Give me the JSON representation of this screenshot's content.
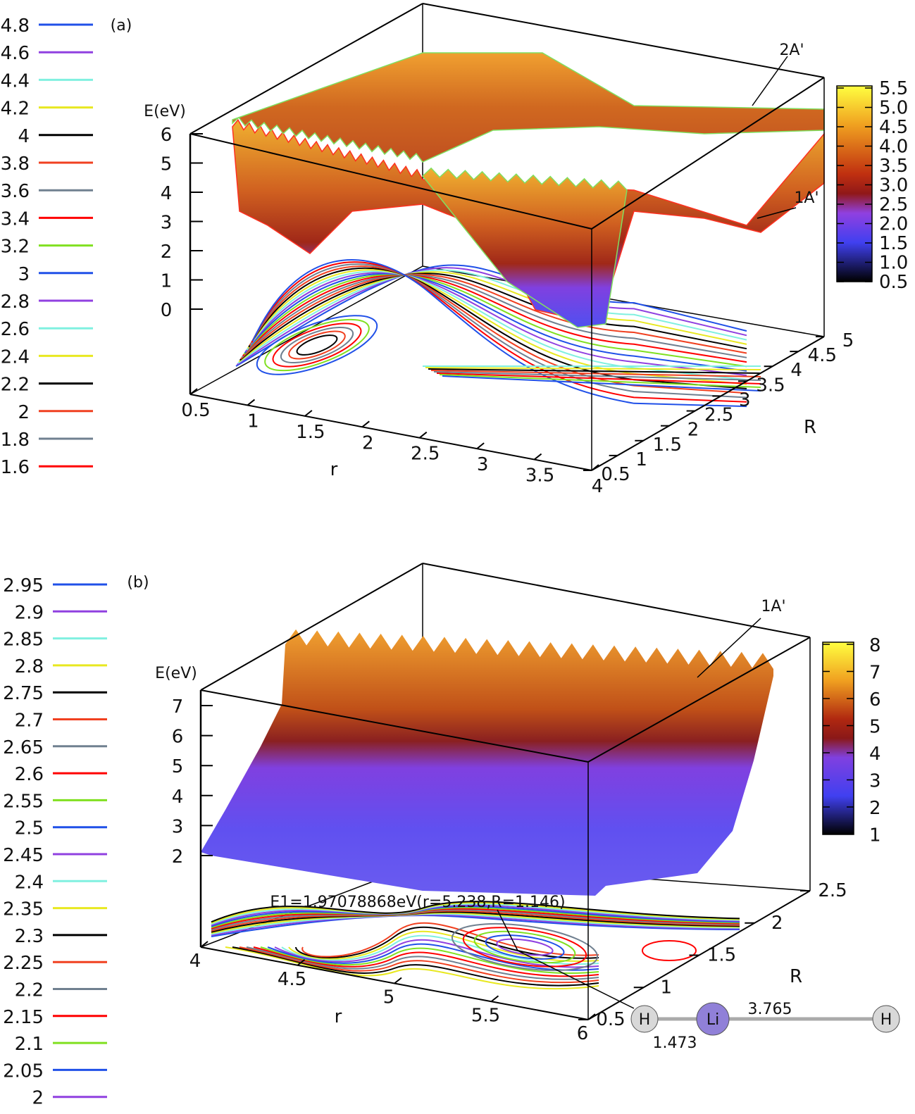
{
  "chart_data": [
    {
      "type": "surface",
      "panel_label": "(a)",
      "zlabel": "E(eV)",
      "xlabel": "r",
      "ylabel": "R",
      "x_ticks": [
        "0.5",
        "1",
        "1.5",
        "2",
        "2.5",
        "3",
        "3.5",
        "4"
      ],
      "y_ticks": [
        "0.5",
        "1",
        "1.5",
        "2",
        "2.5",
        "3",
        "3.5",
        "4",
        "4.5",
        "5"
      ],
      "z_ticks": [
        "6",
        "5",
        "4",
        "3",
        "2",
        "1",
        "0"
      ],
      "xlim": [
        0.5,
        4
      ],
      "ylim": [
        0.5,
        5
      ],
      "zlim": [
        0,
        6
      ],
      "surfaces": [
        "2A'",
        "1A'"
      ],
      "colorbar": {
        "ticks": [
          "5.5",
          "5.0",
          "4.5",
          "4.0",
          "3.5",
          "3.0",
          "2.5",
          "2.0",
          "1.5",
          "1.0",
          "0.5"
        ],
        "range": [
          0.5,
          5.5
        ]
      },
      "contour_legend": [
        {
          "level": "4.8",
          "color": "#2050e8"
        },
        {
          "level": "4.6",
          "color": "#9040e0"
        },
        {
          "level": "4.4",
          "color": "#80f0e0"
        },
        {
          "level": "4.2",
          "color": "#e8e820"
        },
        {
          "level": "4",
          "color": "#000000"
        },
        {
          "level": "3.8",
          "color": "#f04020"
        },
        {
          "level": "3.6",
          "color": "#708090"
        },
        {
          "level": "3.4",
          "color": "#ff0000"
        },
        {
          "level": "3.2",
          "color": "#80e020"
        },
        {
          "level": "3",
          "color": "#2050e8"
        },
        {
          "level": "2.8",
          "color": "#9040e0"
        },
        {
          "level": "2.6",
          "color": "#80f0e0"
        },
        {
          "level": "2.4",
          "color": "#e8e820"
        },
        {
          "level": "2.2",
          "color": "#000000"
        },
        {
          "level": "2",
          "color": "#f04020"
        },
        {
          "level": "1.8",
          "color": "#708090"
        },
        {
          "level": "1.6",
          "color": "#ff0000"
        }
      ]
    },
    {
      "type": "surface",
      "panel_label": "(b)",
      "zlabel": "E(eV)",
      "xlabel": "r",
      "ylabel": "R",
      "x_ticks": [
        "4",
        "4.5",
        "5",
        "5.5",
        "6"
      ],
      "y_ticks": [
        "0.5",
        "1",
        "1.5",
        "2",
        "2.5"
      ],
      "z_ticks": [
        "7",
        "6",
        "5",
        "4",
        "3",
        "2"
      ],
      "xlim": [
        4,
        6
      ],
      "ylim": [
        0.5,
        2.5
      ],
      "zlim": [
        1.5,
        7.5
      ],
      "surfaces": [
        "1A'"
      ],
      "annotation": "E1=1.97078868eV(r=5.238,R=1.146)",
      "minimum": {
        "E": 1.97078868,
        "r": 5.238,
        "R": 1.146
      },
      "colorbar": {
        "ticks": [
          "8",
          "7",
          "6",
          "5",
          "4",
          "3",
          "2",
          "1"
        ],
        "range": [
          1,
          8
        ]
      },
      "molecule": {
        "atoms": [
          "H",
          "Li",
          "H"
        ],
        "bond_1": "1.473",
        "bond_2": "3.765"
      },
      "contour_legend": [
        {
          "level": "2.95",
          "color": "#2050e8"
        },
        {
          "level": "2.9",
          "color": "#9040e0"
        },
        {
          "level": "2.85",
          "color": "#80f0e0"
        },
        {
          "level": "2.8",
          "color": "#e8e820"
        },
        {
          "level": "2.75",
          "color": "#000000"
        },
        {
          "level": "2.7",
          "color": "#f04020"
        },
        {
          "level": "2.65",
          "color": "#708090"
        },
        {
          "level": "2.6",
          "color": "#ff0000"
        },
        {
          "level": "2.55",
          "color": "#80e020"
        },
        {
          "level": "2.5",
          "color": "#2050e8"
        },
        {
          "level": "2.45",
          "color": "#9040e0"
        },
        {
          "level": "2.4",
          "color": "#80f0e0"
        },
        {
          "level": "2.35",
          "color": "#e8e820"
        },
        {
          "level": "2.3",
          "color": "#000000"
        },
        {
          "level": "2.25",
          "color": "#f04020"
        },
        {
          "level": "2.2",
          "color": "#708090"
        },
        {
          "level": "2.15",
          "color": "#ff0000"
        },
        {
          "level": "2.1",
          "color": "#80e020"
        },
        {
          "level": "2.05",
          "color": "#2050e8"
        },
        {
          "level": "2",
          "color": "#9040e0"
        }
      ]
    }
  ]
}
